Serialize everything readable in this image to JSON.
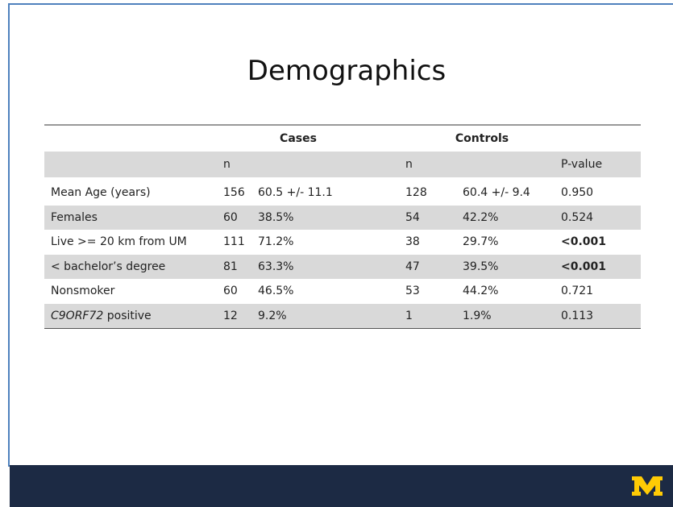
{
  "slide": {
    "title": "Demographics"
  },
  "table": {
    "groups": [
      "Cases",
      "Controls"
    ],
    "subheader": [
      "n",
      "n",
      "P-value"
    ],
    "rows": [
      {
        "label": "Mean Age (years)",
        "cells": [
          "156",
          "60.5 +/- 11.1",
          "128",
          "60.4 +/- 9.4",
          "0.950"
        ],
        "bold_p": false,
        "shaded": false
      },
      {
        "label": "Females",
        "cells": [
          "60",
          "38.5%",
          "54",
          "42.2%",
          "0.524"
        ],
        "bold_p": false,
        "shaded": true
      },
      {
        "label": "Live >= 20 km from UM",
        "cells": [
          "111",
          "71.2%",
          "38",
          "29.7%",
          "<0.001"
        ],
        "bold_p": true,
        "shaded": false
      },
      {
        "label": "< bachelor’s degree",
        "cells": [
          "81",
          "63.3%",
          "47",
          "39.5%",
          "<0.001"
        ],
        "bold_p": true,
        "shaded": true
      },
      {
        "label": "Nonsmoker",
        "cells": [
          "60",
          "46.5%",
          "53",
          "44.2%",
          "0.721"
        ],
        "bold_p": false,
        "shaded": false
      },
      {
        "label_italic": "C9ORF72",
        "label": " positive",
        "cells": [
          "12",
          "9.2%",
          "1",
          "1.9%",
          "0.113"
        ],
        "bold_p": false,
        "shaded": true
      }
    ]
  }
}
